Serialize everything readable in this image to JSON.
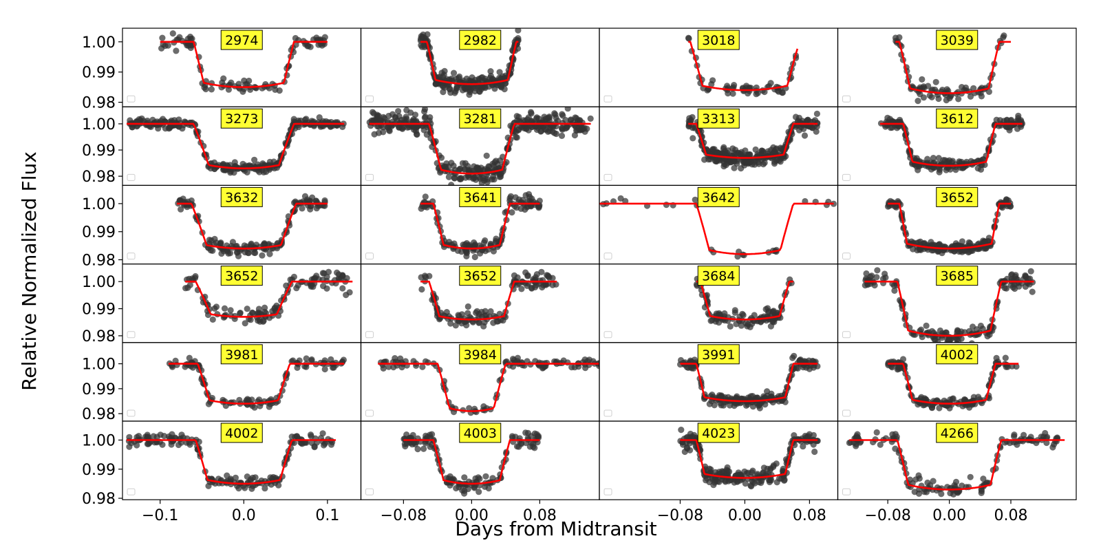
{
  "figure": {
    "ylabel": "Relative Normalized Flux",
    "xlabel": "Days from Midtransit"
  },
  "chart_data": {
    "type": "scatter",
    "ylabel": "Relative Normalized Flux",
    "xlabel": "Days from Midtransit",
    "grid": false,
    "columns": [
      {
        "xlim": [
          -0.145,
          0.14
        ],
        "xticks": [
          -0.1,
          0.0,
          0.1
        ],
        "xtick_labels": [
          "−0.1",
          "0.0",
          "0.1"
        ]
      },
      {
        "xlim": [
          -0.13,
          0.15
        ],
        "xticks": [
          -0.08,
          0.0,
          0.08
        ],
        "xtick_labels": [
          "−0.08",
          "0.00",
          "0.08"
        ]
      },
      {
        "xlim": [
          -0.18,
          0.115
        ],
        "xticks": [
          -0.08,
          0.0,
          0.08
        ],
        "xtick_labels": [
          "−0.08",
          "0.00",
          "0.08"
        ]
      },
      {
        "xlim": [
          -0.145,
          0.165
        ],
        "xticks": [
          -0.08,
          0.0,
          0.08
        ],
        "xtick_labels": [
          "−0.08",
          "0.00",
          "0.08"
        ]
      }
    ],
    "rows": [
      {
        "ylim": [
          0.9785,
          1.0045
        ],
        "yticks": [
          0.98,
          0.99,
          1.0
        ],
        "ytick_labels": [
          "0.98",
          "0.99",
          "1.00"
        ]
      },
      {
        "ylim": [
          0.9765,
          1.0065
        ],
        "yticks": [
          0.98,
          0.99,
          1.0
        ],
        "ytick_labels": [
          "0.98",
          "0.99",
          "1.00"
        ]
      },
      {
        "ylim": [
          0.9785,
          1.0065
        ],
        "yticks": [
          0.98,
          0.99,
          1.0
        ],
        "ytick_labels": [
          "0.98",
          "0.99",
          "1.00"
        ]
      },
      {
        "ylim": [
          0.9775,
          1.0065
        ],
        "yticks": [
          0.98,
          0.99,
          1.0
        ],
        "ytick_labels": [
          "0.98",
          "0.99",
          "1.00"
        ]
      },
      {
        "ylim": [
          0.977,
          1.0085
        ],
        "yticks": [
          0.98,
          0.99,
          1.0
        ],
        "ytick_labels": [
          "0.98",
          "0.99",
          "1.00"
        ]
      },
      {
        "ylim": [
          0.9795,
          1.0065
        ],
        "yticks": [
          0.98,
          0.99,
          1.0
        ],
        "ytick_labels": [
          "0.98",
          "0.99",
          "1.00"
        ]
      }
    ],
    "colors": {
      "points": "#333333",
      "model": "#ff0000",
      "label_box": "#ffff33"
    },
    "panels": [
      {
        "label": "2974",
        "x_range": [
          -0.1,
          0.1
        ],
        "depth": 0.015,
        "t14": 0.12,
        "t12": 0.012,
        "scatter": 0.0012,
        "n": 100
      },
      {
        "label": "2982",
        "x_range": [
          -0.06,
          0.055
        ],
        "depth": 0.014,
        "t14": 0.105,
        "t12": 0.01,
        "scatter": 0.0013,
        "n": 220
      },
      {
        "label": "3018",
        "x_range": [
          -0.07,
          0.065
        ],
        "depth": 0.016,
        "t14": 0.135,
        "t12": 0.015,
        "scatter": 0.0013,
        "n": 60
      },
      {
        "label": "3039",
        "x_range": [
          -0.07,
          0.08
        ],
        "depth": 0.017,
        "t14": 0.13,
        "t12": 0.014,
        "scatter": 0.0013,
        "n": 80
      },
      {
        "label": "3273",
        "x_range": [
          -0.14,
          0.12
        ],
        "depth": 0.017,
        "t14": 0.12,
        "t12": 0.018,
        "scatter": 0.0008,
        "n": 280
      },
      {
        "label": "3281",
        "x_range": [
          -0.12,
          0.14
        ],
        "depth": 0.019,
        "t14": 0.1,
        "t12": 0.014,
        "scatter": 0.002,
        "n": 380
      },
      {
        "label": "3313",
        "x_range": [
          -0.07,
          0.09
        ],
        "depth": 0.013,
        "t14": 0.12,
        "t12": 0.012,
        "scatter": 0.0016,
        "n": 300
      },
      {
        "label": "3612",
        "x_range": [
          -0.09,
          0.095
        ],
        "depth": 0.016,
        "t14": 0.12,
        "t12": 0.012,
        "scatter": 0.0011,
        "n": 200
      },
      {
        "label": "3632",
        "x_range": [
          -0.08,
          0.1
        ],
        "depth": 0.016,
        "t14": 0.125,
        "t12": 0.018,
        "scatter": 0.0011,
        "n": 150
      },
      {
        "label": "3641",
        "x_range": [
          -0.06,
          0.08
        ],
        "depth": 0.016,
        "t14": 0.09,
        "t12": 0.012,
        "scatter": 0.0013,
        "n": 130
      },
      {
        "label": "3642",
        "x_range": [
          -0.18,
          0.11
        ],
        "depth": 0.018,
        "t14": 0.12,
        "t12": 0.016,
        "scatter": 0.0008,
        "n": 26
      },
      {
        "label": "3652",
        "x_range": [
          -0.08,
          0.08
        ],
        "depth": 0.016,
        "t14": 0.13,
        "t12": 0.01,
        "scatter": 0.0009,
        "n": 220
      },
      {
        "label": "3652",
        "x_range": [
          -0.07,
          0.13
        ],
        "depth": 0.013,
        "t14": 0.115,
        "t12": 0.018,
        "scatter": 0.0015,
        "n": 120
      },
      {
        "label": "3652",
        "x_range": [
          -0.06,
          0.1
        ],
        "depth": 0.014,
        "t14": 0.1,
        "t12": 0.012,
        "scatter": 0.0016,
        "n": 130
      },
      {
        "label": "3684",
        "x_range": [
          -0.06,
          0.06
        ],
        "depth": 0.014,
        "t14": 0.11,
        "t12": 0.012,
        "scatter": 0.0014,
        "n": 110
      },
      {
        "label": "3685",
        "x_range": [
          -0.11,
          0.11
        ],
        "depth": 0.02,
        "t14": 0.135,
        "t12": 0.014,
        "scatter": 0.0015,
        "n": 170
      },
      {
        "label": "3981",
        "x_range": [
          -0.09,
          0.12
        ],
        "depth": 0.016,
        "t14": 0.11,
        "t12": 0.014,
        "scatter": 0.001,
        "n": 110
      },
      {
        "label": "3984",
        "x_range": [
          -0.11,
          0.15
        ],
        "depth": 0.019,
        "t14": 0.08,
        "t12": 0.014,
        "scatter": 0.0011,
        "n": 110
      },
      {
        "label": "3991",
        "x_range": [
          -0.08,
          0.09
        ],
        "depth": 0.015,
        "t14": 0.12,
        "t12": 0.01,
        "scatter": 0.0012,
        "n": 210
      },
      {
        "label": "4002",
        "x_range": [
          -0.08,
          0.09
        ],
        "depth": 0.016,
        "t14": 0.12,
        "t12": 0.012,
        "scatter": 0.001,
        "n": 150
      },
      {
        "label": "4002",
        "x_range": [
          -0.14,
          0.11
        ],
        "depth": 0.015,
        "t14": 0.115,
        "t12": 0.014,
        "scatter": 0.001,
        "n": 170
      },
      {
        "label": "4003",
        "x_range": [
          -0.08,
          0.08
        ],
        "depth": 0.015,
        "t14": 0.09,
        "t12": 0.012,
        "scatter": 0.0013,
        "n": 140
      },
      {
        "label": "4023",
        "x_range": [
          -0.08,
          0.09
        ],
        "depth": 0.013,
        "t14": 0.12,
        "t12": 0.01,
        "scatter": 0.0015,
        "n": 220
      },
      {
        "label": "4266",
        "x_range": [
          -0.13,
          0.15
        ],
        "depth": 0.017,
        "t14": 0.135,
        "t12": 0.014,
        "scatter": 0.0013,
        "n": 140
      }
    ]
  }
}
